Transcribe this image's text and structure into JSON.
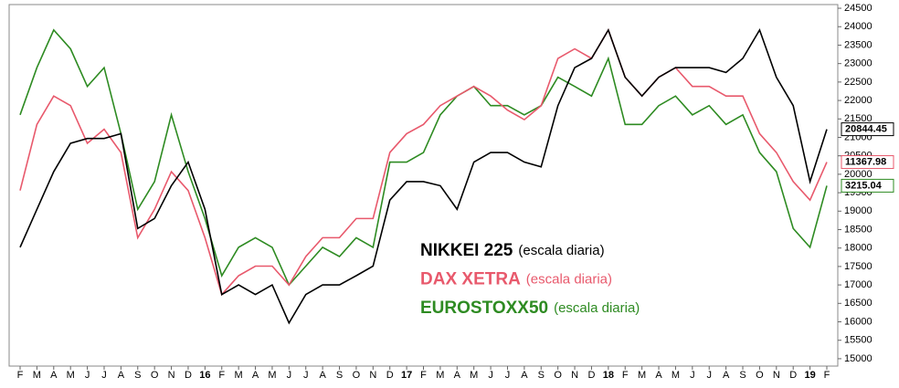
{
  "chart_data": {
    "type": "line",
    "categories": [
      "F",
      "M",
      "A",
      "M",
      "J",
      "J",
      "A",
      "S",
      "O",
      "N",
      "D",
      "16",
      "F",
      "M",
      "A",
      "M",
      "J",
      "J",
      "A",
      "S",
      "O",
      "N",
      "D",
      "17",
      "F",
      "M",
      "A",
      "M",
      "J",
      "J",
      "A",
      "S",
      "O",
      "N",
      "D",
      "18",
      "F",
      "M",
      "A",
      "M",
      "J",
      "J",
      "A",
      "S",
      "O",
      "N",
      "D",
      "19",
      "F"
    ],
    "scale_note": "(escala diaria)",
    "series": [
      {
        "name": "NIKKEI 225",
        "color": "#000000",
        "end_label": "20844.45",
        "values": [
          18020,
          19050,
          20070,
          20840,
          20970,
          20970,
          21100,
          18530,
          18800,
          19690,
          20330,
          19050,
          16740,
          17000,
          16740,
          17000,
          15970,
          16740,
          17000,
          17000,
          17250,
          17510,
          19300,
          19800,
          19800,
          19690,
          19050,
          20330,
          20590,
          20590,
          20330,
          20200,
          21860,
          22890,
          23140,
          23910,
          22630,
          22120,
          22630,
          22890,
          22890,
          22890,
          22760,
          23140,
          23910,
          22630,
          21860,
          19800,
          21220
        ]
      },
      {
        "name": "DAX XETRA",
        "color": "#e8596c",
        "end_label": "11367.98",
        "values": [
          19560,
          21350,
          22120,
          21860,
          20840,
          21220,
          20590,
          18280,
          19050,
          20070,
          19560,
          18280,
          16740,
          17250,
          17510,
          17510,
          17000,
          17770,
          18280,
          18280,
          18800,
          18800,
          20590,
          21100,
          21350,
          21860,
          22120,
          22380,
          22120,
          21740,
          21480,
          21860,
          23140,
          23400,
          23140,
          23910,
          22630,
          22120,
          22630,
          22890,
          22380,
          22380,
          22120,
          22120,
          21100,
          20590,
          19800,
          19300,
          20330
        ]
      },
      {
        "name": "EUROSTOXX50",
        "color": "#2e8b22",
        "end_label": "3215.04",
        "values": [
          21610,
          22890,
          23910,
          23400,
          22380,
          22890,
          21100,
          19050,
          19800,
          21610,
          20070,
          18800,
          17250,
          18020,
          18280,
          18020,
          17000,
          17510,
          18020,
          17770,
          18280,
          18020,
          20330,
          20330,
          20590,
          21610,
          22120,
          22380,
          21860,
          21860,
          21610,
          21860,
          22630,
          22380,
          22120,
          23140,
          21350,
          21350,
          21860,
          22120,
          21610,
          21860,
          21350,
          21610,
          20590,
          20070,
          18530,
          18020,
          19690
        ]
      }
    ],
    "ylim": [
      14800,
      24600
    ],
    "yticks": [
      15000,
      15500,
      16000,
      16500,
      17000,
      17500,
      18000,
      18500,
      19000,
      19500,
      20000,
      20500,
      21000,
      21500,
      22000,
      22500,
      23000,
      23500,
      24000,
      24500
    ]
  }
}
